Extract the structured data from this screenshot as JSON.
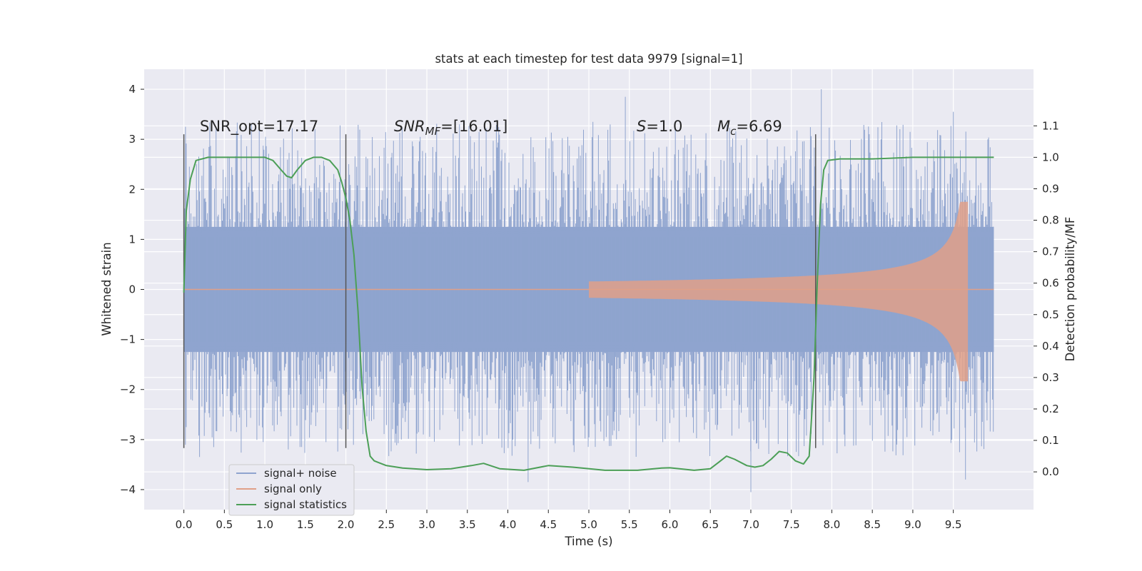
{
  "chart_data": {
    "type": "line",
    "title": "stats at each timestep for test data 9979 [signal=1]",
    "xlabel": "Time (s)",
    "ylabel": "Whitened strain",
    "ylabel_right": "Detection probability/MF",
    "xlim": [
      -0.49,
      10.49
    ],
    "ylim": [
      -4.4,
      4.4
    ],
    "ylim_right": [
      -0.12,
      1.28
    ],
    "grid": true,
    "legend_position": "lower-left",
    "xticks": [
      "0.0",
      "0.5",
      "1.0",
      "1.5",
      "2.0",
      "2.5",
      "3.0",
      "3.5",
      "4.0",
      "4.5",
      "5.0",
      "5.5",
      "6.0",
      "6.5",
      "7.0",
      "7.5",
      "8.0",
      "8.5",
      "9.0",
      "9.5"
    ],
    "yticks": [
      "4",
      "3",
      "2",
      "1",
      "0",
      "−1",
      "−2",
      "−3",
      "−4"
    ],
    "yticks_right": [
      "1.1",
      "1.0",
      "0.9",
      "0.8",
      "0.7",
      "0.6",
      "0.5",
      "0.4",
      "0.3",
      "0.2",
      "0.1",
      "0.0"
    ],
    "annotations": {
      "snr_opt": "SNR_opt=17.17",
      "snr_mf_main": "SNR",
      "snr_mf_sub": "MF",
      "snr_mf_value": "=[16.01]",
      "s_main": "S",
      "s_value": "=1.0",
      "mc_main": "M",
      "mc_sub": "c",
      "mc_value": "=6.69"
    },
    "vertical_markers": [
      0.0,
      2.0,
      7.8
    ],
    "series": [
      {
        "name": "signal+ noise",
        "color": "#8fa4cf",
        "description_values": {
          "t_start": 0.0,
          "t_end": 10.0,
          "core_amplitude": 1.25,
          "peak_max": 4.0,
          "peak_min": -4.05
        }
      },
      {
        "name": "signal only",
        "color": "#e0a088",
        "chirp": {
          "t_start": 5.0,
          "t_merger": 9.68,
          "amp_at_7_8": 0.28,
          "amp_at_9_5": 0.75,
          "peak_max": 1.75,
          "peak_min": -2.0
        }
      },
      {
        "name": "signal statistics",
        "color": "#4c9f57",
        "axis": "right",
        "t": [
          0.0,
          0.03,
          0.08,
          0.15,
          0.3,
          0.5,
          0.8,
          1.0,
          1.1,
          1.2,
          1.27,
          1.33,
          1.4,
          1.5,
          1.6,
          1.7,
          1.8,
          1.9,
          1.95,
          2.0,
          2.05,
          2.1,
          2.15,
          2.2,
          2.25,
          2.3,
          2.35,
          2.4,
          2.5,
          2.7,
          3.0,
          3.3,
          3.55,
          3.7,
          3.9,
          4.2,
          4.5,
          4.8,
          5.2,
          5.6,
          5.9,
          6.0,
          6.3,
          6.5,
          6.6,
          6.7,
          6.8,
          6.95,
          7.05,
          7.15,
          7.25,
          7.35,
          7.45,
          7.55,
          7.65,
          7.72,
          7.78,
          7.82,
          7.86,
          7.9,
          7.95,
          8.1,
          8.5,
          9.0,
          9.5,
          10.0
        ],
        "values": [
          0.57,
          0.83,
          0.93,
          0.99,
          1.0,
          1.0,
          1.0,
          1.0,
          0.99,
          0.96,
          0.94,
          0.935,
          0.96,
          0.99,
          1.0,
          1.0,
          0.99,
          0.96,
          0.92,
          0.87,
          0.8,
          0.69,
          0.51,
          0.27,
          0.13,
          0.05,
          0.035,
          0.03,
          0.02,
          0.012,
          0.007,
          0.01,
          0.02,
          0.027,
          0.01,
          0.005,
          0.02,
          0.015,
          0.005,
          0.005,
          0.012,
          0.013,
          0.005,
          0.01,
          0.03,
          0.05,
          0.04,
          0.02,
          0.015,
          0.02,
          0.04,
          0.065,
          0.06,
          0.035,
          0.025,
          0.05,
          0.3,
          0.6,
          0.85,
          0.96,
          0.99,
          0.995,
          0.995,
          1.0,
          1.0,
          1.0
        ]
      }
    ]
  },
  "legend": {
    "items": [
      {
        "label": "signal+ noise",
        "color": "#8fa4cf"
      },
      {
        "label": "signal only",
        "color": "#e0a088"
      },
      {
        "label": "signal statistics",
        "color": "#4c9f57"
      }
    ]
  }
}
